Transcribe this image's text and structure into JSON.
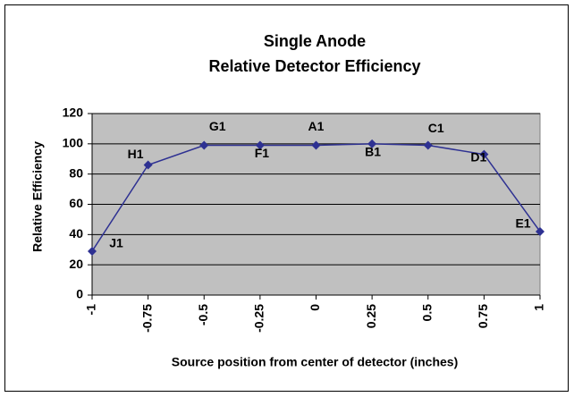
{
  "chart_data": {
    "type": "line",
    "title": [
      "Single Anode",
      "Relative Detector Efficiency"
    ],
    "x_label": "Source position from center of detector (inches)",
    "y_label": "Relative Efficiency",
    "x": [
      -1,
      -0.75,
      -0.5,
      -0.25,
      0,
      0.25,
      0.5,
      0.75,
      1
    ],
    "series": [
      {
        "name": "Relative Efficiency",
        "color": "#2e3192",
        "values": [
          29,
          86,
          99,
          99,
          99,
          100,
          99,
          93,
          42
        ]
      }
    ],
    "point_labels": [
      "J1",
      "H1",
      "G1",
      "F1",
      "A1",
      "B1",
      "C1",
      "D1",
      "E1"
    ],
    "xlim": [
      -1,
      1
    ],
    "xticks": [
      -1,
      -0.75,
      -0.5,
      -0.25,
      0,
      0.25,
      0.5,
      0.75,
      1
    ],
    "ylim": [
      0,
      120
    ],
    "yticks": [
      0,
      20,
      40,
      60,
      80,
      100,
      120
    ],
    "grid": true,
    "plot_background": "#c0c0c0"
  }
}
